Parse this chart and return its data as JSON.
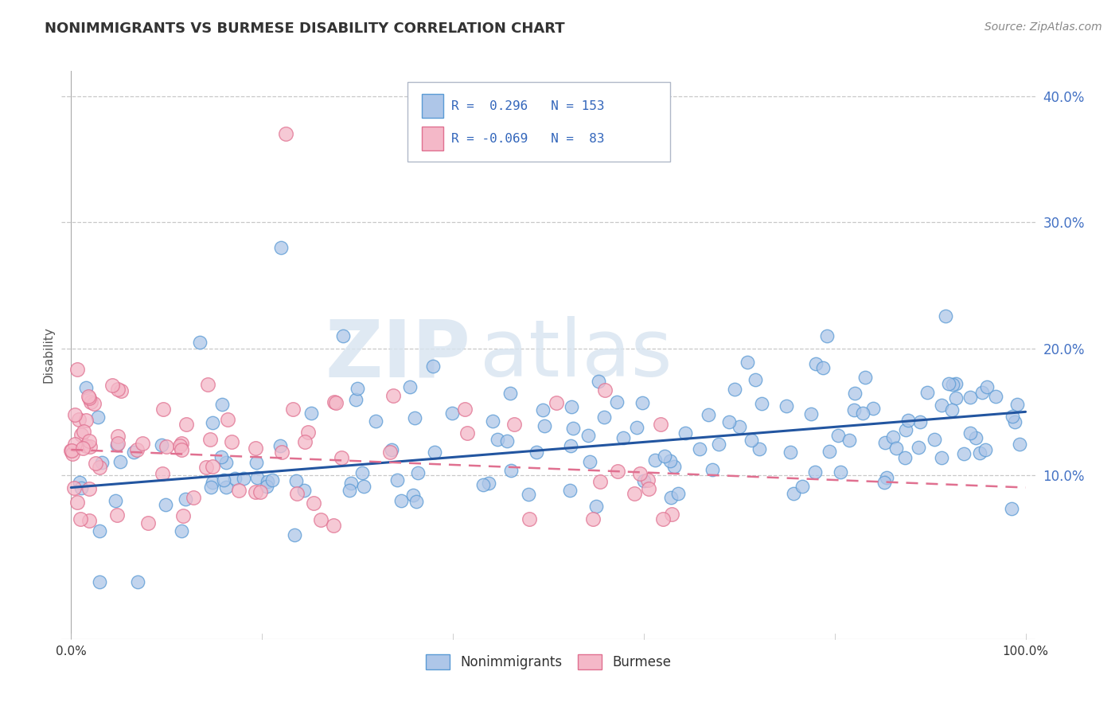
{
  "title": "NONIMMIGRANTS VS BURMESE DISABILITY CORRELATION CHART",
  "source": "Source: ZipAtlas.com",
  "ylabel": "Disability",
  "xlim": [
    -1,
    101
  ],
  "ylim": [
    -3,
    42
  ],
  "yticks": [
    10,
    20,
    30,
    40
  ],
  "ytick_labels": [
    "10.0%",
    "20.0%",
    "30.0%",
    "40.0%"
  ],
  "xtick_labels": [
    "0.0%",
    "100.0%"
  ],
  "legend_labels": [
    "Nonimmigrants",
    "Burmese"
  ],
  "legend_r": [
    "0.296",
    "-0.069"
  ],
  "legend_n": [
    "153",
    "83"
  ],
  "color_blue_fill": "#aec6e8",
  "color_blue_edge": "#5b9bd5",
  "color_pink_fill": "#f4b8c8",
  "color_pink_edge": "#e07090",
  "color_blue_line": "#2255a0",
  "color_pink_line": "#e07090",
  "watermark_zip": "ZIP",
  "watermark_atlas": "atlas",
  "background_color": "#ffffff",
  "grid_color": "#c8c8c8",
  "title_color": "#333333",
  "source_color": "#888888",
  "ytick_color": "#4472c4",
  "xtick_color": "#333333",
  "ylabel_color": "#555555"
}
